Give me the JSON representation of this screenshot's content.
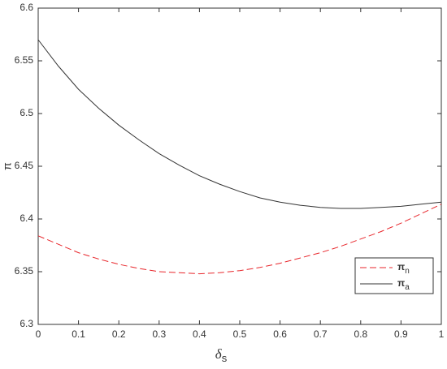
{
  "chart_data": {
    "type": "line",
    "xlabel": "δ",
    "xlabel_subscript": "s",
    "ylabel": "π",
    "x": [
      0,
      0.05,
      0.1,
      0.15,
      0.2,
      0.25,
      0.3,
      0.35,
      0.4,
      0.45,
      0.5,
      0.55,
      0.6,
      0.65,
      0.7,
      0.75,
      0.8,
      0.85,
      0.9,
      0.95,
      1
    ],
    "series": [
      {
        "name": "π",
        "subscript": "n",
        "color": "#e8262b",
        "dash": true,
        "values": [
          6.384,
          6.376,
          6.368,
          6.362,
          6.357,
          6.353,
          6.35,
          6.349,
          6.348,
          6.349,
          6.351,
          6.354,
          6.358,
          6.363,
          6.368,
          6.374,
          6.381,
          6.388,
          6.396,
          6.405,
          6.414
        ]
      },
      {
        "name": "π",
        "subscript": "a",
        "color": "#333333",
        "dash": false,
        "values": [
          6.57,
          6.545,
          6.523,
          6.505,
          6.489,
          6.475,
          6.462,
          6.451,
          6.441,
          6.433,
          6.426,
          6.42,
          6.416,
          6.413,
          6.411,
          6.41,
          6.41,
          6.411,
          6.412,
          6.414,
          6.416
        ]
      }
    ],
    "xlim": [
      0,
      1
    ],
    "xticks": [
      0,
      0.1,
      0.2,
      0.3,
      0.4,
      0.5,
      0.6,
      0.7,
      0.8,
      0.9,
      1
    ],
    "ylim": [
      6.3,
      6.6
    ],
    "yticks": [
      6.3,
      6.35,
      6.4,
      6.45,
      6.5,
      6.55,
      6.6
    ],
    "legend": "lower right",
    "grid": false
  }
}
